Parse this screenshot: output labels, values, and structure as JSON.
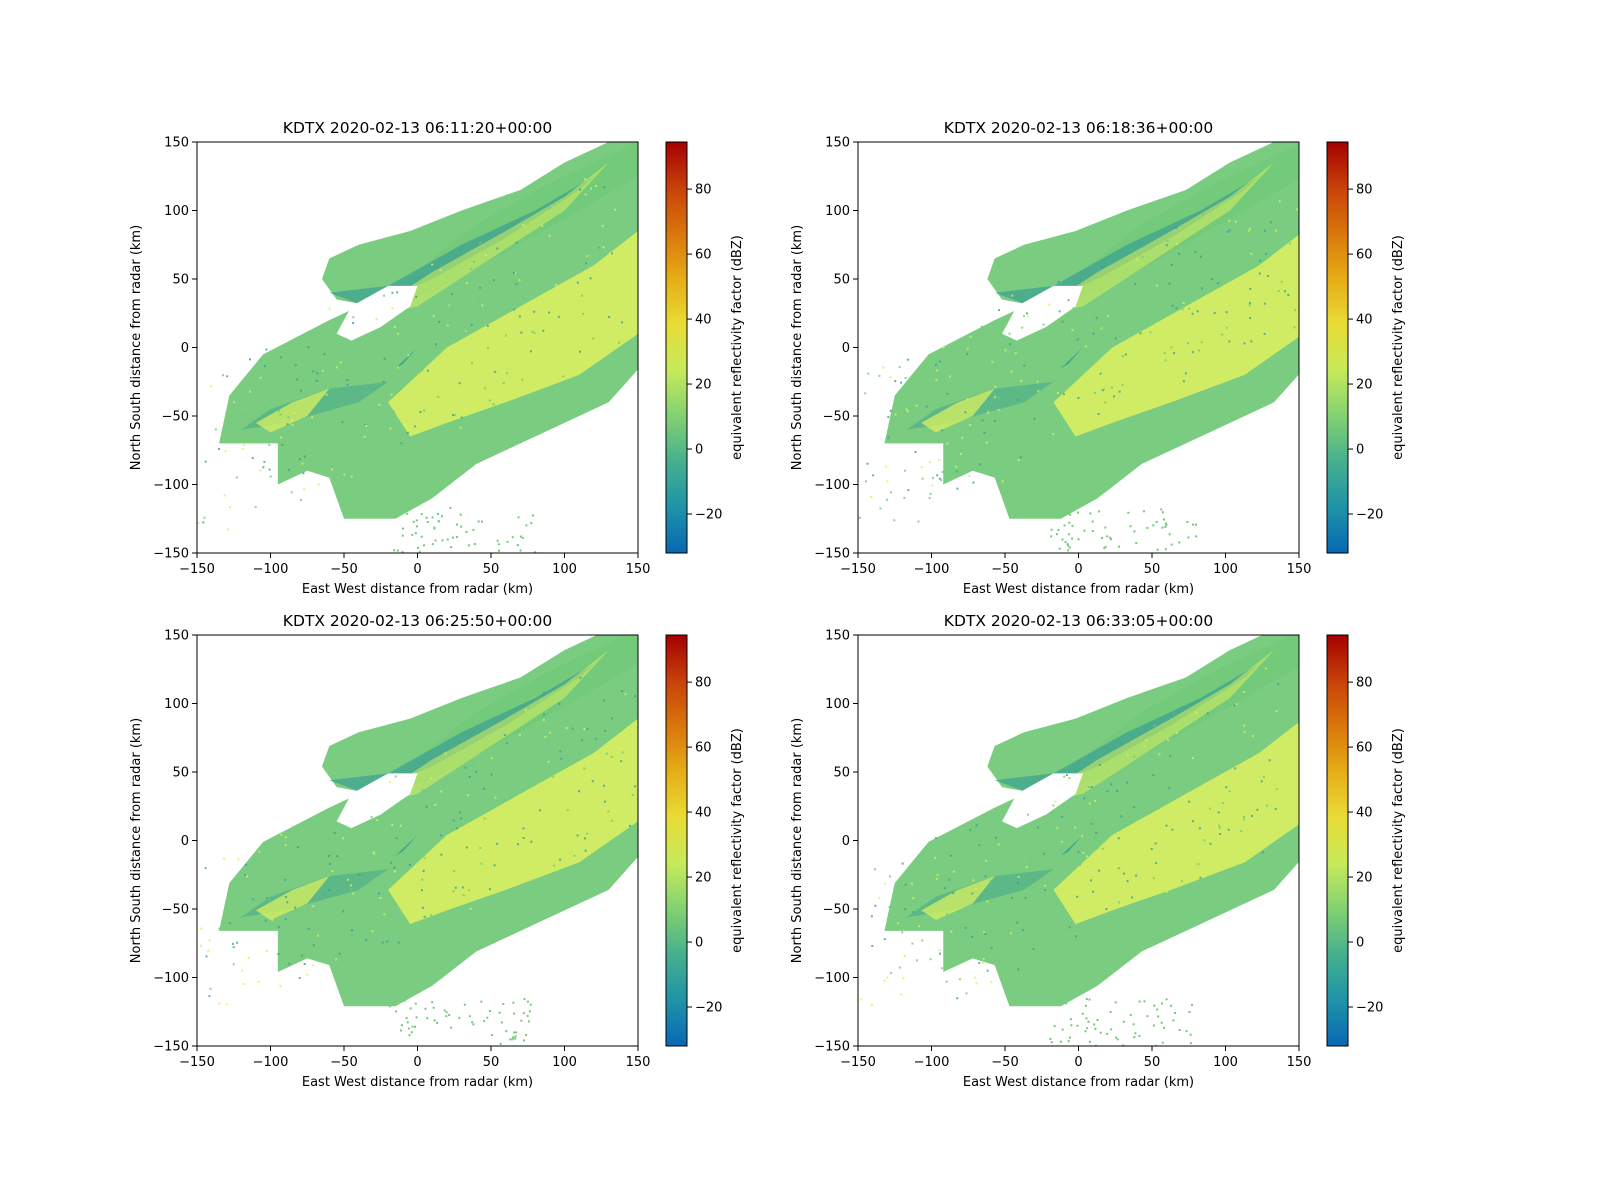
{
  "chart_data": [
    {
      "type": "heatmap",
      "title": "KDTX 2020-02-13 06:11:20+00:00",
      "xlabel": "East West distance from radar (km)",
      "ylabel": "North South distance from radar (km)",
      "xlim": [
        -150,
        150
      ],
      "ylim": [
        -150,
        150
      ],
      "xticks": [
        -150,
        -100,
        -50,
        0,
        50,
        100,
        150
      ],
      "yticks": [
        -150,
        -100,
        -50,
        0,
        50,
        100,
        150
      ],
      "colorbar": {
        "label": "equivalent reflectivity factor (dBZ)",
        "range": [
          -32,
          94.5
        ],
        "ticks": [
          -20,
          0,
          20,
          40,
          60,
          80
        ]
      },
      "grid": false,
      "echo_band": {
        "orientation_deg": 35,
        "max_dbz_approx": 25
      }
    },
    {
      "type": "heatmap",
      "title": "KDTX 2020-02-13 06:18:36+00:00",
      "xlabel": "East West distance from radar (km)",
      "ylabel": "North South distance from radar (km)",
      "xlim": [
        -150,
        150
      ],
      "ylim": [
        -150,
        150
      ],
      "xticks": [
        -150,
        -100,
        -50,
        0,
        50,
        100,
        150
      ],
      "yticks": [
        -150,
        -100,
        -50,
        0,
        50,
        100,
        150
      ],
      "colorbar": {
        "label": "equivalent reflectivity factor (dBZ)",
        "range": [
          -32,
          94.5
        ],
        "ticks": [
          -20,
          0,
          20,
          40,
          60,
          80
        ]
      },
      "grid": false,
      "echo_band": {
        "orientation_deg": 35,
        "max_dbz_approx": 25
      }
    },
    {
      "type": "heatmap",
      "title": "KDTX 2020-02-13 06:25:50+00:00",
      "xlabel": "East West distance from radar (km)",
      "ylabel": "North South distance from radar (km)",
      "xlim": [
        -150,
        150
      ],
      "ylim": [
        -150,
        150
      ],
      "xticks": [
        -150,
        -100,
        -50,
        0,
        50,
        100,
        150
      ],
      "yticks": [
        -150,
        -100,
        -50,
        0,
        50,
        100,
        150
      ],
      "colorbar": {
        "label": "equivalent reflectivity factor (dBZ)",
        "range": [
          -32,
          94.5
        ],
        "ticks": [
          -20,
          0,
          20,
          40,
          60,
          80
        ]
      },
      "grid": false,
      "echo_band": {
        "orientation_deg": 35,
        "max_dbz_approx": 25
      }
    },
    {
      "type": "heatmap",
      "title": "KDTX 2020-02-13 06:33:05+00:00",
      "xlabel": "East West distance from radar (km)",
      "ylabel": "North South distance from radar (km)",
      "xlim": [
        -150,
        150
      ],
      "ylim": [
        -150,
        150
      ],
      "xticks": [
        -150,
        -100,
        -50,
        0,
        50,
        100,
        150
      ],
      "yticks": [
        -150,
        -100,
        -50,
        0,
        50,
        100,
        150
      ],
      "colorbar": {
        "label": "equivalent reflectivity factor (dBZ)",
        "range": [
          -32,
          94.5
        ],
        "ticks": [
          -20,
          0,
          20,
          40,
          60,
          80
        ]
      },
      "grid": false,
      "echo_band": {
        "orientation_deg": 35,
        "max_dbz_approx": 25
      }
    }
  ],
  "colors": {
    "colormap": [
      "#0868b5",
      "#1f93a8",
      "#45b08e",
      "#83d171",
      "#c6ea5a",
      "#e8dc35",
      "#e6ad15",
      "#d9760b",
      "#c8410a",
      "#a40000"
    ],
    "echo_low": "#3aa093",
    "echo_mid": "#73c979",
    "echo_high": "#d8f060",
    "axes": "#000000"
  }
}
